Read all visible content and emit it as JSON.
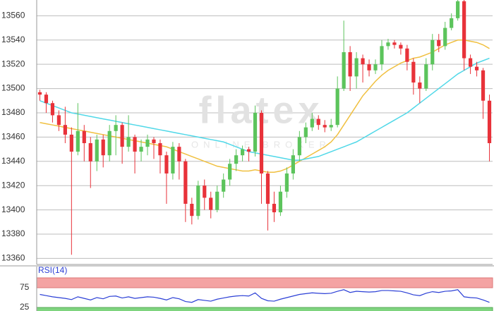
{
  "chart_data": {
    "type": "candlestick",
    "watermark": {
      "title": "flatex",
      "subtitle": "ONLINE BROKER"
    },
    "ylim": [
      13355,
      13573
    ],
    "yticks": [
      13360,
      13380,
      13400,
      13420,
      13440,
      13460,
      13480,
      13500,
      13520,
      13540,
      13560
    ],
    "grid": true,
    "up_color": "#5cc45c",
    "down_color": "#e8323a",
    "open": [
      13497,
      13495,
      13488,
      13478,
      13470,
      13462,
      13448,
      13465,
      13455,
      13440,
      13458,
      13445,
      13465,
      13470,
      13452,
      13460,
      13448,
      13452,
      13458,
      13455,
      13445,
      13430,
      13452,
      13440,
      13405,
      13395,
      13420,
      13410,
      13400,
      13415,
      13425,
      13438,
      13445,
      13450,
      13448,
      13480,
      13430,
      13405,
      13398,
      13415,
      13430,
      13445,
      13460,
      13468,
      13475,
      13470,
      13468,
      13470,
      13500,
      13530,
      13510,
      13525,
      13520,
      13515,
      13520,
      13535,
      13538,
      13536,
      13533,
      13522,
      13505,
      13500,
      13520,
      13540,
      13535,
      13550,
      13558,
      13572,
      13525,
      13518,
      13515,
      13490
    ],
    "high": [
      13499,
      13497,
      13490,
      13482,
      13485,
      13468,
      13488,
      13470,
      13460,
      13462,
      13462,
      13470,
      13478,
      13472,
      13478,
      13462,
      13458,
      13462,
      13460,
      13458,
      13448,
      13456,
      13455,
      13442,
      13410,
      13424,
      13425,
      13415,
      13420,
      13430,
      13442,
      13450,
      13453,
      13452,
      13486,
      13482,
      13432,
      13415,
      13420,
      13435,
      13450,
      13465,
      13472,
      13480,
      13478,
      13474,
      13475,
      13510,
      13556,
      13535,
      13530,
      13528,
      13524,
      13524,
      13540,
      13541,
      13540,
      13538,
      13536,
      13525,
      13510,
      13525,
      13545,
      13545,
      13555,
      13562,
      13575,
      13574,
      13528,
      13522,
      13517,
      13495
    ],
    "low": [
      13490,
      13480,
      13472,
      13465,
      13455,
      13363,
      13445,
      13440,
      13418,
      13432,
      13435,
      13440,
      13445,
      13438,
      13448,
      13430,
      13440,
      13445,
      13442,
      13430,
      13405,
      13425,
      13425,
      13390,
      13388,
      13392,
      13400,
      13393,
      13398,
      13410,
      13420,
      13432,
      13440,
      13440,
      13444,
      13405,
      13383,
      13390,
      13395,
      13410,
      13425,
      13440,
      13455,
      13465,
      13466,
      13464,
      13465,
      13468,
      13498,
      13498,
      13500,
      13505,
      13510,
      13512,
      13515,
      13532,
      13533,
      13528,
      13515,
      13495,
      13488,
      13498,
      13515,
      13530,
      13532,
      13548,
      13556,
      13515,
      13512,
      13510,
      13475,
      13440
    ],
    "close": [
      13495,
      13488,
      13478,
      13470,
      13462,
      13448,
      13465,
      13455,
      13440,
      13458,
      13445,
      13465,
      13470,
      13452,
      13460,
      13448,
      13452,
      13458,
      13455,
      13445,
      13430,
      13452,
      13440,
      13405,
      13395,
      13420,
      13410,
      13400,
      13415,
      13425,
      13438,
      13445,
      13450,
      13448,
      13480,
      13430,
      13405,
      13398,
      13415,
      13430,
      13445,
      13460,
      13468,
      13475,
      13470,
      13468,
      13470,
      13500,
      13530,
      13510,
      13525,
      13520,
      13515,
      13520,
      13535,
      13538,
      13536,
      13533,
      13522,
      13505,
      13500,
      13520,
      13540,
      13535,
      13550,
      13558,
      13572,
      13525,
      13518,
      13515,
      13490,
      13455
    ],
    "series": [
      {
        "color": "#f0c040",
        "values": [
          13472,
          13471,
          13470,
          13469,
          13468,
          13467,
          13466,
          13465,
          13464,
          13463,
          13462,
          13461,
          13460,
          13459,
          13458,
          13457,
          13456,
          13455,
          13454,
          13453,
          13452,
          13450,
          13448,
          13446,
          13444,
          13442,
          13440,
          13438,
          13436,
          13435,
          13434,
          13433,
          13432,
          13432,
          13433,
          13432,
          13431,
          13431,
          13432,
          13434,
          13437,
          13440,
          13443,
          13446,
          13449,
          13452,
          13456,
          13462,
          13470,
          13478,
          13486,
          13494,
          13500,
          13506,
          13511,
          13515,
          13518,
          13521,
          13523,
          13525,
          13526,
          13528,
          13530,
          13533,
          13536,
          13538,
          13540,
          13540,
          13539,
          13538,
          13536,
          13533
        ]
      },
      {
        "color": "#50d8e8",
        "values": [
          13490,
          13488,
          13486,
          13484,
          13482,
          13480,
          13479,
          13478,
          13477,
          13476,
          13475,
          13474,
          13473,
          13472,
          13471,
          13470,
          13469,
          13468,
          13467,
          13466,
          13465,
          13464,
          13463,
          13462,
          13461,
          13460,
          13459,
          13458,
          13457,
          13456,
          13454,
          13452,
          13450,
          13448,
          13447,
          13446,
          13445,
          13444,
          13443,
          13442,
          13441,
          13441,
          13442,
          13443,
          13444,
          13446,
          13448,
          13450,
          13452,
          13454,
          13456,
          13459,
          13462,
          13465,
          13468,
          13471,
          13474,
          13477,
          13480,
          13484,
          13488,
          13492,
          13496,
          13500,
          13504,
          13508,
          13512,
          13515,
          13518,
          13521,
          13523,
          13525
        ]
      }
    ],
    "indicator": {
      "title": "RSI(14)",
      "color": "#2b3fd6",
      "ylim": [
        0,
        100
      ],
      "yticks": [
        25,
        75
      ],
      "upper_color": "#f4a3a3",
      "lower_color": "#7fd47f",
      "values": [
        58,
        55,
        52,
        50,
        48,
        45,
        52,
        48,
        44,
        50,
        47,
        53,
        54,
        49,
        52,
        48,
        50,
        52,
        51,
        48,
        44,
        50,
        47,
        40,
        38,
        45,
        43,
        41,
        46,
        49,
        52,
        54,
        55,
        54,
        62,
        48,
        42,
        41,
        46,
        50,
        54,
        58,
        60,
        62,
        61,
        60,
        61,
        66,
        70,
        63,
        66,
        65,
        64,
        65,
        68,
        68,
        67,
        66,
        62,
        57,
        55,
        61,
        65,
        63,
        66,
        67,
        70,
        52,
        50,
        49,
        44,
        38
      ]
    }
  }
}
